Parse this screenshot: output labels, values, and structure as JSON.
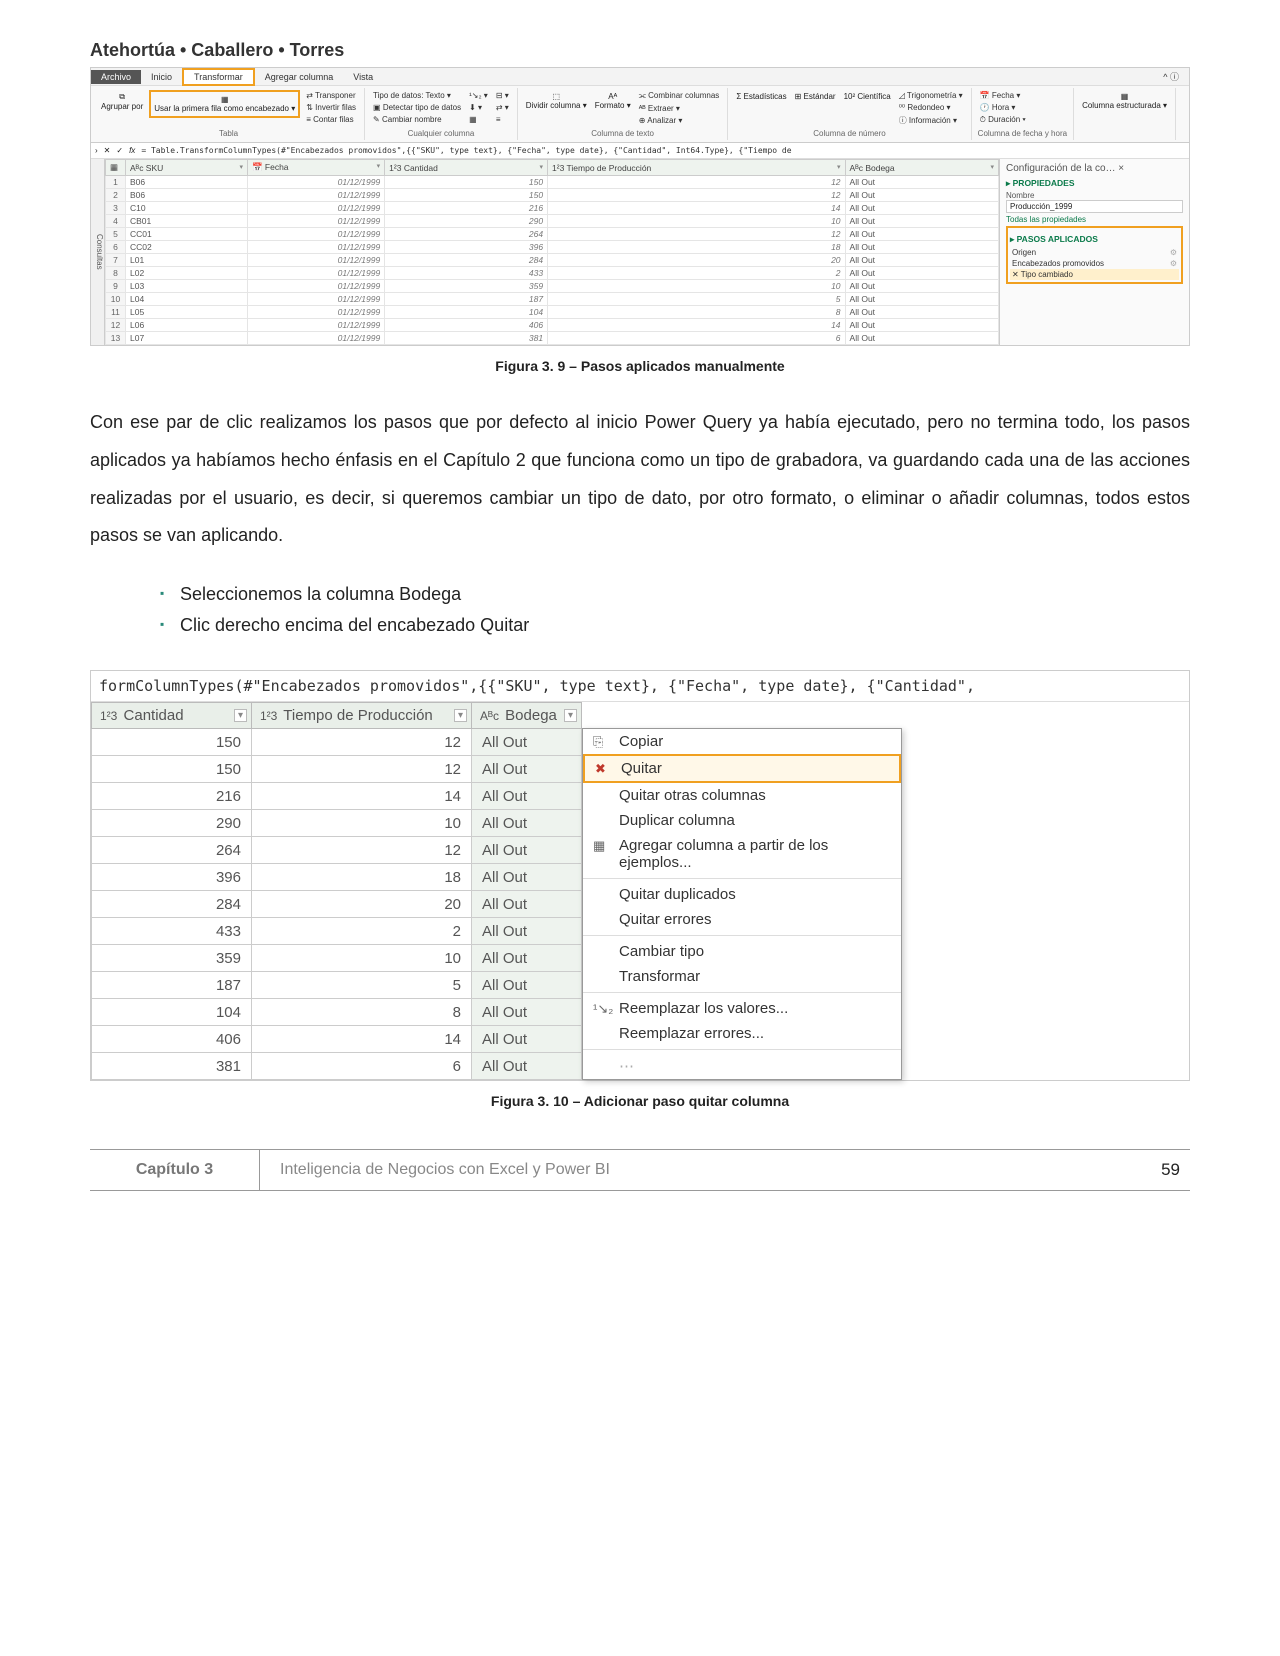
{
  "authors": "Atehortúa • Caballero • Torres",
  "fig39": {
    "tabs": [
      "Archivo",
      "Inicio",
      "Transformar",
      "Agregar columna",
      "Vista"
    ],
    "tabla_group": {
      "big": "Agrupar por",
      "first_row": "Usar la primera fila como encabezado ▾",
      "label": "Tabla"
    },
    "col1": {
      "a": "⇄ Transponer",
      "b": "⇅ Invertir filas",
      "c": "≡ Contar filas"
    },
    "col2": {
      "a": "Tipo de datos: Texto ▾",
      "b": "▣ Detectar tipo de datos",
      "c": "✎ Cambiar nombre",
      "label": "Cualquier columna"
    },
    "col3": {
      "a": "Dividir columna ▾",
      "b": "Formato ▾",
      "label": "Columna de texto"
    },
    "col4": {
      "a": "⫘ Combinar columnas",
      "b": "ᴬᴮ Extraer ▾",
      "c": "⊕ Analizar ▾"
    },
    "col5": {
      "a": "Σ Estadísticas",
      "b": "⊞ Estándar",
      "c": "10² Científica",
      "label": "Columna de número"
    },
    "col6": {
      "a": "◿ Trigonometría ▾",
      "b": "⁰⁰ Redondeo ▾",
      "c": "ⓘ Información ▾"
    },
    "col7": {
      "a": "📅 Fecha ▾",
      "b": "🕐 Hora ▾",
      "c": "⏱ Duración ▾",
      "label": "Columna de fecha y hora"
    },
    "col8": {
      "a": "Columna estructurada ▾"
    },
    "fx": "= Table.TransformColumnTypes(#\"Encabezados promovidos\",{{\"SKU\", type text}, {\"Fecha\", type date}, {\"Cantidad\", Int64.Type}, {\"Tiempo de",
    "side": "Consultas",
    "headers": [
      "",
      "Aᴮc SKU",
      "📅 Fecha",
      "1²3 Cantidad",
      "1²3 Tiempo de Producción",
      "Aᴮc Bodega"
    ],
    "rows": [
      [
        "1",
        "B06",
        "01/12/1999",
        "150",
        "12",
        "All Out"
      ],
      [
        "2",
        "B06",
        "01/12/1999",
        "150",
        "12",
        "All Out"
      ],
      [
        "3",
        "C10",
        "01/12/1999",
        "216",
        "14",
        "All Out"
      ],
      [
        "4",
        "CB01",
        "01/12/1999",
        "290",
        "10",
        "All Out"
      ],
      [
        "5",
        "CC01",
        "01/12/1999",
        "264",
        "12",
        "All Out"
      ],
      [
        "6",
        "CC02",
        "01/12/1999",
        "396",
        "18",
        "All Out"
      ],
      [
        "7",
        "L01",
        "01/12/1999",
        "284",
        "20",
        "All Out"
      ],
      [
        "8",
        "L02",
        "01/12/1999",
        "433",
        "2",
        "All Out"
      ],
      [
        "9",
        "L03",
        "01/12/1999",
        "359",
        "10",
        "All Out"
      ],
      [
        "10",
        "L04",
        "01/12/1999",
        "187",
        "5",
        "All Out"
      ],
      [
        "11",
        "L05",
        "01/12/1999",
        "104",
        "8",
        "All Out"
      ],
      [
        "12",
        "L06",
        "01/12/1999",
        "406",
        "14",
        "All Out"
      ],
      [
        "13",
        "L07",
        "01/12/1999",
        "381",
        "6",
        "All Out"
      ]
    ],
    "rp_title": "Configuración de la co… ×",
    "rp_prop": "PROPIEDADES",
    "rp_nombre": "Nombre",
    "rp_name_val": "Producción_1999",
    "rp_all": "Todas las propiedades",
    "rp_steps_hdr": "PASOS APLICADOS",
    "rp_steps": [
      "Origen",
      "Encabezados promovidos",
      "Tipo cambiado"
    ],
    "caption": "Figura 3. 9 – Pasos aplicados manualmente"
  },
  "para": "Con ese par de clic realizamos los pasos que por defecto al inicio Power Query ya había ejecutado, pero no termina todo, los pasos aplicados ya habíamos hecho énfasis en el Capítulo 2 que funciona como un tipo de grabadora, va guardando cada una de las acciones realizadas por el usuario, es decir, si queremos cambiar un tipo de dato, por otro formato, o eliminar o añadir columnas, todos estos pasos se van aplicando.",
  "bul1": "Seleccionemos la columna Bodega",
  "bul2": "Clic derecho encima del encabezado Quitar",
  "fig310": {
    "fx": "formColumnTypes(#\"Encabezados promovidos\",{{\"SKU\", type text}, {\"Fecha\", type date}, {\"Cantidad\",",
    "h1": "Cantidad",
    "h2": "Tiempo de Producción",
    "h3": "Bodega",
    "rows": [
      [
        "150",
        "12",
        "All Out"
      ],
      [
        "150",
        "12",
        "All Out"
      ],
      [
        "216",
        "14",
        "All Out"
      ],
      [
        "290",
        "10",
        "All Out"
      ],
      [
        "264",
        "12",
        "All Out"
      ],
      [
        "396",
        "18",
        "All Out"
      ],
      [
        "284",
        "20",
        "All Out"
      ],
      [
        "433",
        "2",
        "All Out"
      ],
      [
        "359",
        "10",
        "All Out"
      ],
      [
        "187",
        "5",
        "All Out"
      ],
      [
        "104",
        "8",
        "All Out"
      ],
      [
        "406",
        "14",
        "All Out"
      ],
      [
        "381",
        "6",
        "All Out"
      ]
    ],
    "menu": {
      "copiar": "Copiar",
      "quitar": "Quitar",
      "otras": "Quitar otras columnas",
      "dup": "Duplicar columna",
      "ej": "Agregar columna a partir de los ejemplos...",
      "qd": "Quitar duplicados",
      "qe": "Quitar errores",
      "ct": "Cambiar tipo",
      "tr": "Transformar",
      "rv": "Reemplazar los valores...",
      "re": "Reemplazar errores..."
    },
    "caption": "Figura 3. 10 – Adicionar paso quitar columna"
  },
  "footer": {
    "chap": "Capítulo 3",
    "title": "Inteligencia de Negocios con Excel y Power BI",
    "page": "59"
  }
}
